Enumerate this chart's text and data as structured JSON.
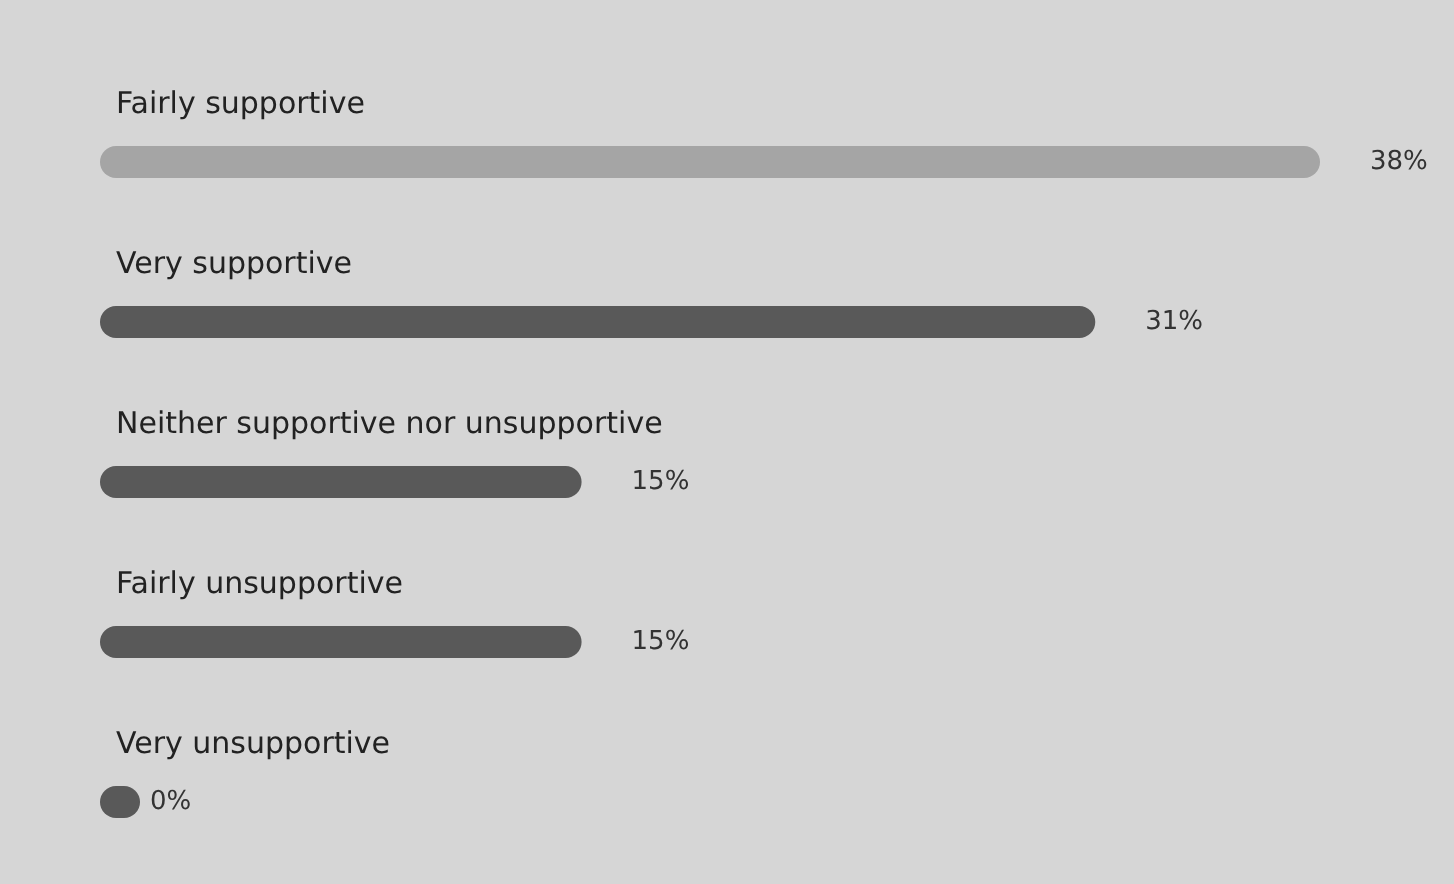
{
  "chart_data": {
    "type": "bar",
    "orientation": "horizontal",
    "categories": [
      "Fairly supportive",
      "Very supportive",
      "Neither supportive nor unsupportive",
      "Fairly unsupportive",
      "Very unsupportive"
    ],
    "values": [
      38,
      31,
      15,
      15,
      0
    ],
    "value_labels": [
      "38%",
      "31%",
      "15%",
      "15%",
      "0%"
    ],
    "colors": [
      "#a5a5a5",
      "#595959",
      "#595959",
      "#595959",
      "#595959"
    ]
  }
}
